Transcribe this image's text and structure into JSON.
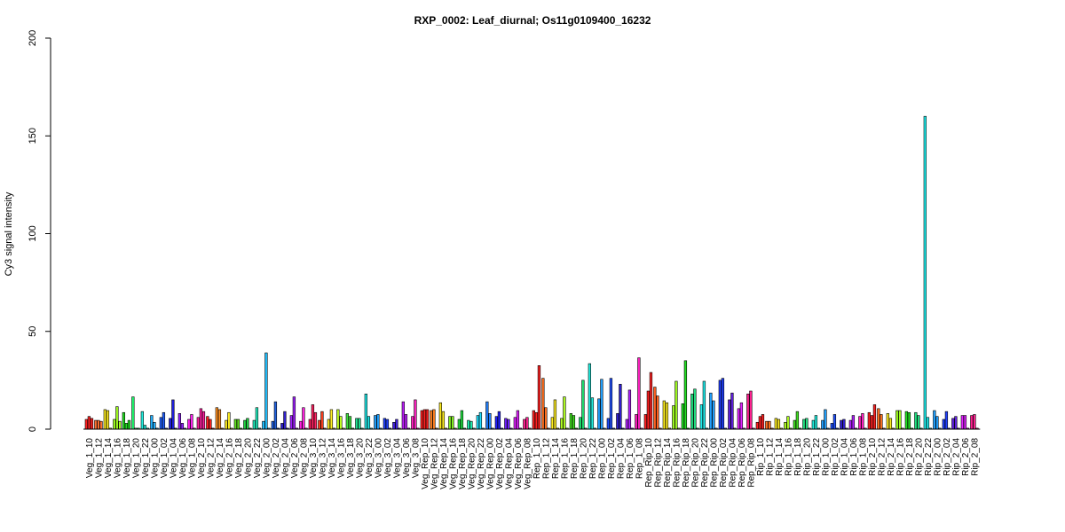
{
  "chart_data": {
    "type": "bar",
    "title": "RXP_0002: Leaf_diurnal; Os11g0109400_16232",
    "xlabel": "",
    "ylabel": "Cy3 signal intensity",
    "ylim": [
      0,
      200
    ],
    "yticks": [
      0,
      50,
      100,
      150,
      200
    ],
    "grid": false,
    "legend": "none",
    "bars_per_group": 3,
    "groups": [
      {
        "label": "Veg_1_10",
        "color": "#ff2020",
        "values": [
          5.0,
          6.5,
          5.5
        ]
      },
      {
        "label": "Veg_1_12",
        "color": "#ff7030",
        "values": [
          4.5,
          4.5,
          4.0
        ]
      },
      {
        "label": "Veg_1_14",
        "color": "#ffee20",
        "values": [
          10.0,
          9.5,
          0.5
        ]
      },
      {
        "label": "Veg_1_16",
        "color": "#a0ff20",
        "values": [
          5.0,
          11.5,
          4.0
        ]
      },
      {
        "label": "Veg_1_18",
        "color": "#20e020",
        "values": [
          8.5,
          3.0,
          4.5
        ]
      },
      {
        "label": "Veg_1_20",
        "color": "#20ff70",
        "values": [
          16.5,
          0.5,
          0.5
        ]
      },
      {
        "label": "Veg_1_22",
        "color": "#20f0e0",
        "values": [
          9.0,
          2.0,
          0.5
        ]
      },
      {
        "label": "Veg_1_00",
        "color": "#20b0ff",
        "values": [
          7.0,
          3.5,
          0.5
        ]
      },
      {
        "label": "Veg_1_02",
        "color": "#2060ff",
        "values": [
          6.0,
          8.5,
          0.5
        ]
      },
      {
        "label": "Veg_1_04",
        "color": "#2020e0",
        "values": [
          5.5,
          15.0,
          0.5
        ]
      },
      {
        "label": "Veg_1_06",
        "color": "#9020ff",
        "values": [
          8.0,
          3.0,
          0.5
        ]
      },
      {
        "label": "Veg_1_08",
        "color": "#ff20f0",
        "values": [
          5.0,
          7.5,
          0.5
        ]
      },
      {
        "label": "Veg_2_10",
        "color": "#ff20a0",
        "values": [
          6.0,
          10.5,
          9.0
        ]
      },
      {
        "label": "Veg_2_12",
        "color": "#ff2020",
        "values": [
          6.5,
          5.0,
          0.5
        ]
      },
      {
        "label": "Veg_2_14",
        "color": "#ff9020",
        "values": [
          11.0,
          10.0,
          0.5
        ]
      },
      {
        "label": "Veg_2_16",
        "color": "#ffee20",
        "values": [
          4.5,
          8.5,
          0.5
        ]
      },
      {
        "label": "Veg_2_18",
        "color": "#60e020",
        "values": [
          5.0,
          5.0,
          0.5
        ]
      },
      {
        "label": "Veg_2_20",
        "color": "#20d040",
        "values": [
          4.5,
          5.5,
          0.5
        ]
      },
      {
        "label": "Veg_2_22",
        "color": "#20f0c0",
        "values": [
          4.5,
          11.0,
          0.5
        ]
      },
      {
        "label": "Veg_2_00",
        "color": "#20c0ff",
        "values": [
          4.0,
          39.0,
          0.5
        ]
      },
      {
        "label": "Veg_2_02",
        "color": "#2060e0",
        "values": [
          4.0,
          14.0,
          0.5
        ]
      },
      {
        "label": "Veg_2_04",
        "color": "#3020d0",
        "values": [
          3.0,
          9.0,
          0.5
        ]
      },
      {
        "label": "Veg_2_06",
        "color": "#a020ff",
        "values": [
          7.0,
          16.5,
          0.5
        ]
      },
      {
        "label": "Veg_2_08",
        "color": "#ff20e0",
        "values": [
          4.0,
          11.0,
          0.5
        ]
      },
      {
        "label": "Veg_3_10",
        "color": "#ff2060",
        "values": [
          5.0,
          12.5,
          8.5
        ]
      },
      {
        "label": "Veg_3_12",
        "color": "#ff4020",
        "values": [
          4.5,
          9.0,
          0.5
        ]
      },
      {
        "label": "Veg_3_14",
        "color": "#ffee20",
        "values": [
          5.0,
          10.0,
          0.5
        ]
      },
      {
        "label": "Veg_3_16",
        "color": "#c0ff20",
        "values": [
          10.0,
          6.5,
          0.5
        ]
      },
      {
        "label": "Veg_3_18",
        "color": "#40e040",
        "values": [
          8.0,
          6.5,
          0.5
        ]
      },
      {
        "label": "Veg_3_20",
        "color": "#20e090",
        "values": [
          5.5,
          5.5,
          0.5
        ]
      },
      {
        "label": "Veg_3_22",
        "color": "#20e8e8",
        "values": [
          18.0,
          6.5,
          0.5
        ]
      },
      {
        "label": "Veg_3_00",
        "color": "#20a0ff",
        "values": [
          7.0,
          7.5,
          0.5
        ]
      },
      {
        "label": "Veg_3_02",
        "color": "#2040ff",
        "values": [
          5.5,
          5.0,
          0.5
        ]
      },
      {
        "label": "Veg_3_04",
        "color": "#4020e0",
        "values": [
          3.5,
          5.0,
          0.5
        ]
      },
      {
        "label": "Veg_3_06",
        "color": "#c020ff",
        "values": [
          14.0,
          7.5,
          0.5
        ]
      },
      {
        "label": "Veg_3_08",
        "color": "#ff20c0",
        "values": [
          6.5,
          15.0,
          0.5
        ]
      },
      {
        "label": "Veg_Rep_10",
        "color": "#ff2020",
        "values": [
          9.5,
          10.0,
          10.0
        ]
      },
      {
        "label": "Veg_Rep_12",
        "color": "#ff8020",
        "values": [
          9.5,
          10.0,
          0.5
        ]
      },
      {
        "label": "Veg_Rep_14",
        "color": "#ffee20",
        "values": [
          13.5,
          9.0,
          0.5
        ]
      },
      {
        "label": "Veg_Rep_16",
        "color": "#80f020",
        "values": [
          6.5,
          6.5,
          0.5
        ]
      },
      {
        "label": "Veg_Rep_18",
        "color": "#20e040",
        "values": [
          5.0,
          9.5,
          0.5
        ]
      },
      {
        "label": "Veg_Rep_20",
        "color": "#20f0b0",
        "values": [
          4.5,
          4.0,
          0.5
        ]
      },
      {
        "label": "Veg_Rep_22",
        "color": "#20e0ff",
        "values": [
          7.0,
          8.5,
          0.5
        ]
      },
      {
        "label": "Veg_Rep_00",
        "color": "#2080ff",
        "values": [
          14.0,
          8.0,
          0.5
        ]
      },
      {
        "label": "Veg_Rep_02",
        "color": "#2020ff",
        "values": [
          6.5,
          9.0,
          0.5
        ]
      },
      {
        "label": "Veg_Rep_04",
        "color": "#7020ff",
        "values": [
          5.5,
          5.0,
          0.5
        ]
      },
      {
        "label": "Veg_Rep_06",
        "color": "#e020ff",
        "values": [
          6.0,
          9.5,
          0.5
        ]
      },
      {
        "label": "Veg_Rep_08",
        "color": "#ff2090",
        "values": [
          5.0,
          6.0,
          0.5
        ]
      },
      {
        "label": "Rep_1_10",
        "color": "#ff2020",
        "values": [
          9.5,
          8.5,
          32.5
        ]
      },
      {
        "label": "Rep_1_12",
        "color": "#ff7020",
        "values": [
          26.0,
          11.0,
          0.5
        ]
      },
      {
        "label": "Rep_1_14",
        "color": "#ffee20",
        "values": [
          6.0,
          15.0,
          0.5
        ]
      },
      {
        "label": "Rep_1_16",
        "color": "#b0ff20",
        "values": [
          5.5,
          16.5,
          0.5
        ]
      },
      {
        "label": "Rep_1_18",
        "color": "#40e020",
        "values": [
          8.0,
          7.0,
          0.5
        ]
      },
      {
        "label": "Rep_1_20",
        "color": "#20e070",
        "values": [
          6.0,
          25.0,
          0.5
        ]
      },
      {
        "label": "Rep_1_22",
        "color": "#20f0e0",
        "values": [
          33.5,
          16.0,
          0.5
        ]
      },
      {
        "label": "Rep_1_00",
        "color": "#20a0ff",
        "values": [
          15.5,
          25.5,
          0.5
        ]
      },
      {
        "label": "Rep_1_02",
        "color": "#2050ff",
        "values": [
          5.5,
          26.0,
          0.5
        ]
      },
      {
        "label": "Rep_1_04",
        "color": "#3020d0",
        "values": [
          8.0,
          23.0,
          0.5
        ]
      },
      {
        "label": "Rep_1_06",
        "color": "#b020ff",
        "values": [
          5.0,
          20.0,
          0.5
        ]
      },
      {
        "label": "Rep_1_08",
        "color": "#ff20c0",
        "values": [
          7.5,
          36.5,
          0.5
        ]
      },
      {
        "label": "Rep_Rip_10",
        "color": "#ff2020",
        "values": [
          7.5,
          19.5,
          29.0
        ]
      },
      {
        "label": "Rep_Rip_12",
        "color": "#ff6020",
        "values": [
          21.5,
          17.0,
          0.5
        ]
      },
      {
        "label": "Rep_Rip_14",
        "color": "#ffee20",
        "values": [
          14.5,
          13.5,
          0.5
        ]
      },
      {
        "label": "Rep_Rip_16",
        "color": "#a0ff20",
        "values": [
          12.0,
          24.5,
          0.5
        ]
      },
      {
        "label": "Rep_Rip_18",
        "color": "#20e020",
        "values": [
          13.0,
          35.0,
          0.5
        ]
      },
      {
        "label": "Rep_Rip_20",
        "color": "#20e080",
        "values": [
          18.0,
          20.5,
          0.5
        ]
      },
      {
        "label": "Rep_Rip_22",
        "color": "#20f0f0",
        "values": [
          12.5,
          24.5,
          0.5
        ]
      },
      {
        "label": "Rep_Rip_00",
        "color": "#20a0ff",
        "values": [
          18.5,
          14.5,
          0.5
        ]
      },
      {
        "label": "Rep_Rip_02",
        "color": "#2040ff",
        "values": [
          25.0,
          26.0,
          0.5
        ]
      },
      {
        "label": "Rep_Rip_04",
        "color": "#6020e0",
        "values": [
          15.0,
          18.5,
          0.5
        ]
      },
      {
        "label": "Rep_Rip_06",
        "color": "#e020ff",
        "values": [
          10.5,
          13.5,
          0.5
        ]
      },
      {
        "label": "Rep_Rip_08",
        "color": "#ff2090",
        "values": [
          18.0,
          19.5,
          0.5
        ]
      },
      {
        "label": "Rip_1_10",
        "color": "#ff2020",
        "values": [
          3.5,
          6.5,
          7.5
        ]
      },
      {
        "label": "Rip_1_12",
        "color": "#ff7020",
        "values": [
          4.0,
          4.0,
          0.5
        ]
      },
      {
        "label": "Rip_1_14",
        "color": "#ffee20",
        "values": [
          5.5,
          5.0,
          0.5
        ]
      },
      {
        "label": "Rip_1_16",
        "color": "#b0ff20",
        "values": [
          3.5,
          6.5,
          0.5
        ]
      },
      {
        "label": "Rip_1_18",
        "color": "#40e020",
        "values": [
          4.5,
          9.0,
          0.5
        ]
      },
      {
        "label": "Rip_1_20",
        "color": "#20e080",
        "values": [
          5.0,
          5.5,
          0.5
        ]
      },
      {
        "label": "Rip_1_22",
        "color": "#20f0e0",
        "values": [
          4.5,
          7.0,
          0.5
        ]
      },
      {
        "label": "Rip_1_00",
        "color": "#20a0ff",
        "values": [
          4.5,
          10.0,
          0.5
        ]
      },
      {
        "label": "Rip_1_02",
        "color": "#2050ff",
        "values": [
          3.0,
          7.5,
          0.5
        ]
      },
      {
        "label": "Rip_1_04",
        "color": "#3020d0",
        "values": [
          4.5,
          5.0,
          0.5
        ]
      },
      {
        "label": "Rip_1_06",
        "color": "#b020ff",
        "values": [
          4.5,
          7.0,
          0.5
        ]
      },
      {
        "label": "Rip_1_08",
        "color": "#ff20c0",
        "values": [
          6.5,
          8.0,
          0.5
        ]
      },
      {
        "label": "Rip_2_10",
        "color": "#ff2020",
        "values": [
          8.5,
          7.0,
          12.5
        ]
      },
      {
        "label": "Rip_2_12",
        "color": "#ff7020",
        "values": [
          10.5,
          7.5,
          0.5
        ]
      },
      {
        "label": "Rip_2_14",
        "color": "#ffee20",
        "values": [
          8.0,
          5.5,
          0.5
        ]
      },
      {
        "label": "Rip_2_16",
        "color": "#a0ff20",
        "values": [
          9.5,
          9.5,
          0.5
        ]
      },
      {
        "label": "Rip_2_18",
        "color": "#20e020",
        "values": [
          9.0,
          8.5,
          0.5
        ]
      },
      {
        "label": "Rip_2_20",
        "color": "#20e080",
        "values": [
          8.5,
          7.0,
          0.5
        ]
      },
      {
        "label": "Rip_2_22",
        "color": "#20f0f0",
        "values": [
          160.0,
          6.0,
          0.5
        ]
      },
      {
        "label": "Rip_2_00",
        "color": "#20a0ff",
        "values": [
          9.5,
          6.5,
          0.5
        ]
      },
      {
        "label": "Rip_2_02",
        "color": "#2040ff",
        "values": [
          5.0,
          9.0,
          0.5
        ]
      },
      {
        "label": "Rip_2_04",
        "color": "#6020e0",
        "values": [
          5.5,
          6.5,
          0.5
        ]
      },
      {
        "label": "Rip_2_06",
        "color": "#e020ff",
        "values": [
          7.0,
          7.0,
          0.5
        ]
      },
      {
        "label": "Rip_2_08",
        "color": "#ff2090",
        "values": [
          7.0,
          7.5,
          0.5
        ]
      }
    ]
  }
}
